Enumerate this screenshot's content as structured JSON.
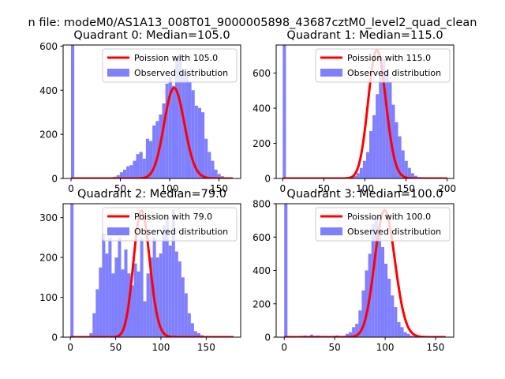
{
  "figure": {
    "suptitle": "n file: modeM0/AS1A13_008T01_9000005898_43687cztM0_level2_quad_clean"
  },
  "colors": {
    "hist_fill": "#8080ff",
    "poisson_line": "#ff0000",
    "axes": "#000000",
    "background": "#ffffff"
  },
  "chart_data": [
    {
      "type": "bar",
      "title": "Quadrant 0: Median=105.0",
      "xlim": [
        -8,
        172
      ],
      "ylim": [
        0,
        605
      ],
      "xticks": [
        0,
        50,
        100,
        150
      ],
      "xtick_labels": [
        "0",
        "50",
        "100",
        "150"
      ],
      "yticks": [
        0,
        200,
        400,
        600
      ],
      "ytick_labels": [
        "0",
        "200",
        "400",
        "600"
      ],
      "legend_position": "upper right",
      "legend": [
        "Poission with 105.0",
        "Observed distribution"
      ],
      "median": 105,
      "poisson_peak": 410,
      "histogram": {
        "bin_width": 3.3,
        "start": 0,
        "values": [
          605,
          0,
          0,
          0,
          0,
          0,
          0,
          0,
          0,
          0,
          0,
          0,
          2,
          8,
          15,
          28,
          40,
          55,
          60,
          80,
          110,
          120,
          90,
          180,
          170,
          240,
          260,
          290,
          340,
          430,
          460,
          420,
          540,
          560,
          470,
          480,
          440,
          400,
          330,
          320,
          300,
          180,
          120,
          80,
          40,
          20,
          10,
          5,
          2,
          1
        ]
      }
    },
    {
      "type": "bar",
      "title": "Quadrant 1: Median=115.0",
      "xlim": [
        -8,
        208
      ],
      "ylim": [
        0,
        760
      ],
      "xticks": [
        0,
        50,
        100,
        150,
        200
      ],
      "xtick_labels": [
        "0",
        "50",
        "100",
        "150",
        "200"
      ],
      "yticks": [
        0,
        200,
        400,
        600
      ],
      "ytick_labels": [
        "0",
        "200",
        "400",
        "600"
      ],
      "legend_position": "upper right",
      "legend": [
        "Poission with 115.0",
        "Observed distribution"
      ],
      "median": 115,
      "poisson_peak": 730,
      "histogram": {
        "bin_width": 3.9,
        "start": 0,
        "values": [
          760,
          0,
          0,
          0,
          0,
          0,
          0,
          0,
          0,
          0,
          0,
          0,
          0,
          0,
          0,
          0,
          0,
          0,
          0,
          0,
          1,
          5,
          15,
          30,
          60,
          100,
          150,
          270,
          360,
          480,
          600,
          680,
          620,
          550,
          420,
          320,
          240,
          160,
          100,
          60,
          30,
          15,
          8,
          4,
          2,
          1,
          0,
          0,
          0,
          0
        ]
      }
    },
    {
      "type": "bar",
      "title": "Quadrant 2: Median=79.0",
      "xlim": [
        -8,
        188
      ],
      "ylim": [
        0,
        335
      ],
      "xticks": [
        0,
        50,
        100,
        150
      ],
      "xtick_labels": [
        "0",
        "50",
        "100",
        "150"
      ],
      "yticks": [
        0,
        100,
        200,
        300
      ],
      "ytick_labels": [
        "0",
        "100",
        "200",
        "300"
      ],
      "legend_position": "upper right",
      "legend": [
        "Poission with 79.0",
        "Observed distribution"
      ],
      "median": 79,
      "poisson_peak": 318,
      "histogram": {
        "bin_width": 3.5,
        "start": 0,
        "values": [
          335,
          0,
          0,
          0,
          0,
          0,
          10,
          60,
          120,
          175,
          260,
          210,
          250,
          160,
          200,
          250,
          170,
          220,
          160,
          130,
          185,
          165,
          250,
          90,
          160,
          200,
          250,
          200,
          210,
          280,
          300,
          230,
          320,
          215,
          190,
          150,
          110,
          60,
          35,
          15,
          10,
          5,
          2,
          1,
          0,
          0,
          0,
          0,
          0,
          0
        ]
      }
    },
    {
      "type": "bar",
      "title": "Quadrant 3: Median=100.0",
      "xlim": [
        -8,
        168
      ],
      "ylim": [
        0,
        800
      ],
      "xticks": [
        0,
        50,
        100,
        150
      ],
      "xtick_labels": [
        "0",
        "50",
        "100",
        "150"
      ],
      "yticks": [
        0,
        200,
        400,
        600,
        800
      ],
      "ytick_labels": [
        "0",
        "200",
        "400",
        "600",
        "800"
      ],
      "legend_position": "upper right",
      "legend": [
        "Poission with 100.0",
        "Observed distribution"
      ],
      "median": 100,
      "poisson_peak": 760,
      "histogram": {
        "bin_width": 3.2,
        "start": 0,
        "values": [
          800,
          0,
          0,
          0,
          0,
          8,
          10,
          0,
          15,
          8,
          10,
          5,
          8,
          6,
          3,
          8,
          10,
          5,
          8,
          20,
          30,
          60,
          80,
          160,
          280,
          400,
          500,
          680,
          720,
          660,
          540,
          440,
          350,
          250,
          180,
          90,
          60,
          30,
          20,
          10,
          5,
          2,
          0,
          0,
          0,
          0,
          0,
          0,
          0,
          0
        ]
      }
    }
  ]
}
